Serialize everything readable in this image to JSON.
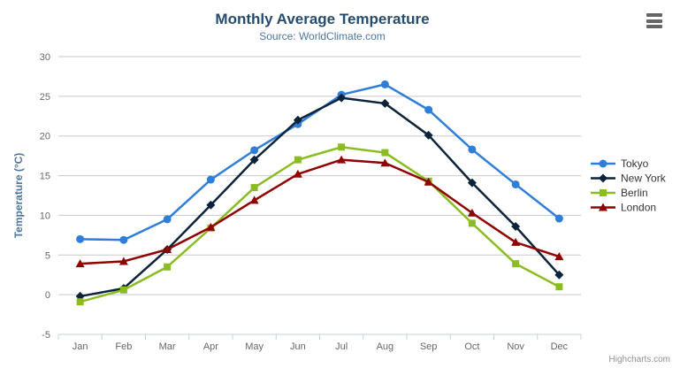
{
  "header": {
    "title": "Monthly Average Temperature",
    "subtitle": "Source: WorldClimate.com"
  },
  "context_menu": {
    "icon": "hamburger-icon"
  },
  "credits": {
    "label": "Highcharts.com"
  },
  "chart_data": {
    "type": "line",
    "title": "Monthly Average Temperature",
    "subtitle": "Source: WorldClimate.com",
    "categories": [
      "Jan",
      "Feb",
      "Mar",
      "Apr",
      "May",
      "Jun",
      "Jul",
      "Aug",
      "Sep",
      "Oct",
      "Nov",
      "Dec"
    ],
    "series": [
      {
        "name": "Tokyo",
        "color": "#2f7ed8",
        "marker": "circle",
        "values": [
          7.0,
          6.9,
          9.5,
          14.5,
          18.2,
          21.5,
          25.2,
          26.5,
          23.3,
          18.3,
          13.9,
          9.6
        ]
      },
      {
        "name": "New York",
        "color": "#0d233a",
        "marker": "diamond",
        "values": [
          -0.2,
          0.8,
          5.7,
          11.3,
          17.0,
          22.0,
          24.8,
          24.1,
          20.1,
          14.1,
          8.6,
          2.5
        ]
      },
      {
        "name": "Berlin",
        "color": "#8bbc21",
        "marker": "square",
        "values": [
          -0.9,
          0.6,
          3.5,
          8.4,
          13.5,
          17.0,
          18.6,
          17.9,
          14.3,
          9.0,
          3.9,
          1.0
        ]
      },
      {
        "name": "London",
        "color": "#910000",
        "marker": "triangle",
        "values": [
          3.9,
          4.2,
          5.7,
          8.5,
          11.9,
          15.2,
          17.0,
          16.6,
          14.2,
          10.3,
          6.6,
          4.8
        ]
      }
    ],
    "xlabel": "",
    "ylabel": "Temperature (°C)",
    "ylim": [
      -5,
      30
    ],
    "ytick_step": 5,
    "grid": true,
    "legend_position": "right"
  },
  "colors": {
    "title": "#274b6d",
    "subtitle": "#4d759e",
    "axis_title": "#4d759e",
    "axis_label": "#666666",
    "grid_line": "#c9c9c9",
    "axis_line": "#c0d0e0",
    "legend_text": "#333333",
    "credits_text": "#909090",
    "background": "#ffffff"
  }
}
